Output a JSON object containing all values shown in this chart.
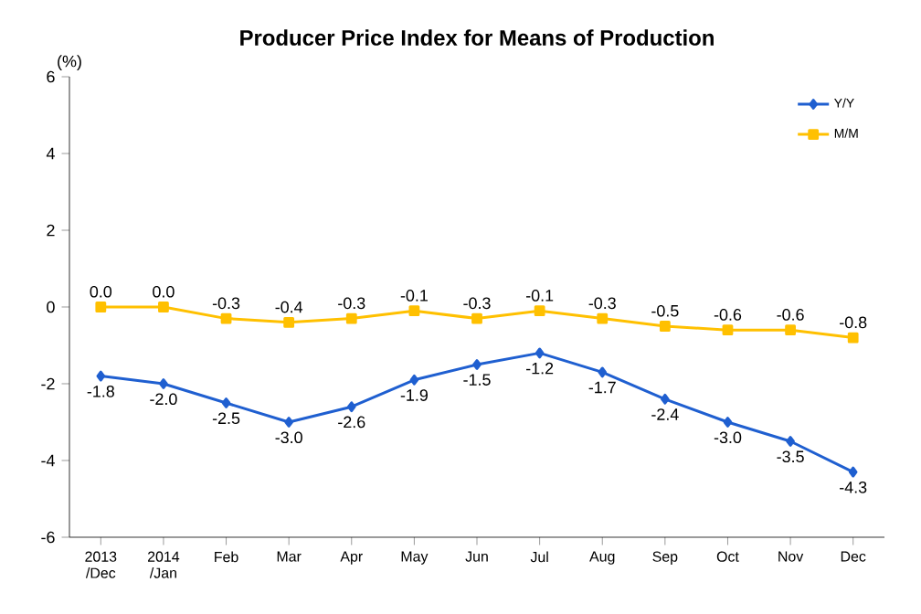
{
  "chart_data": {
    "type": "line",
    "title": "Producer Price Index for Means of Production",
    "ylabel": "(%)",
    "categories": [
      "2013 /Dec",
      "2014 /Jan",
      "Feb",
      "Mar",
      "Apr",
      "May",
      "Jun",
      "Jul",
      "Aug",
      "Sep",
      "Oct",
      "Nov",
      "Dec"
    ],
    "series": [
      {
        "name": "Y/Y",
        "color": "#1f5fd0",
        "marker": "diamond",
        "values": [
          -1.8,
          -2.0,
          -2.5,
          -3.0,
          -2.6,
          -1.9,
          -1.5,
          -1.2,
          -1.7,
          -2.4,
          -3.0,
          -3.5,
          -4.3
        ],
        "value_labels": [
          "-1.8",
          "-2.0",
          "-2.5",
          "-3.0",
          "-2.6",
          "-1.9",
          "-1.5",
          "-1.2",
          "-1.7",
          "-2.4",
          "-3.0",
          "-3.5",
          "-4.3"
        ]
      },
      {
        "name": "M/M",
        "color": "#ffc000",
        "marker": "square",
        "values": [
          0.0,
          0.0,
          -0.3,
          -0.4,
          -0.3,
          -0.1,
          -0.3,
          -0.1,
          -0.3,
          -0.5,
          -0.6,
          -0.6,
          -0.8
        ],
        "value_labels": [
          "0.0",
          "0.0",
          "-0.3",
          "-0.4",
          "-0.3",
          "-0.1",
          "-0.3",
          "-0.1",
          "-0.3",
          "-0.5",
          "-0.6",
          "-0.6",
          "-0.8"
        ]
      }
    ],
    "ylim": [
      -6,
      6
    ],
    "yticks": [
      -6,
      -4,
      -2,
      0,
      2,
      4,
      6
    ],
    "grid": false,
    "legend": "top right",
    "line_style": "solid"
  }
}
